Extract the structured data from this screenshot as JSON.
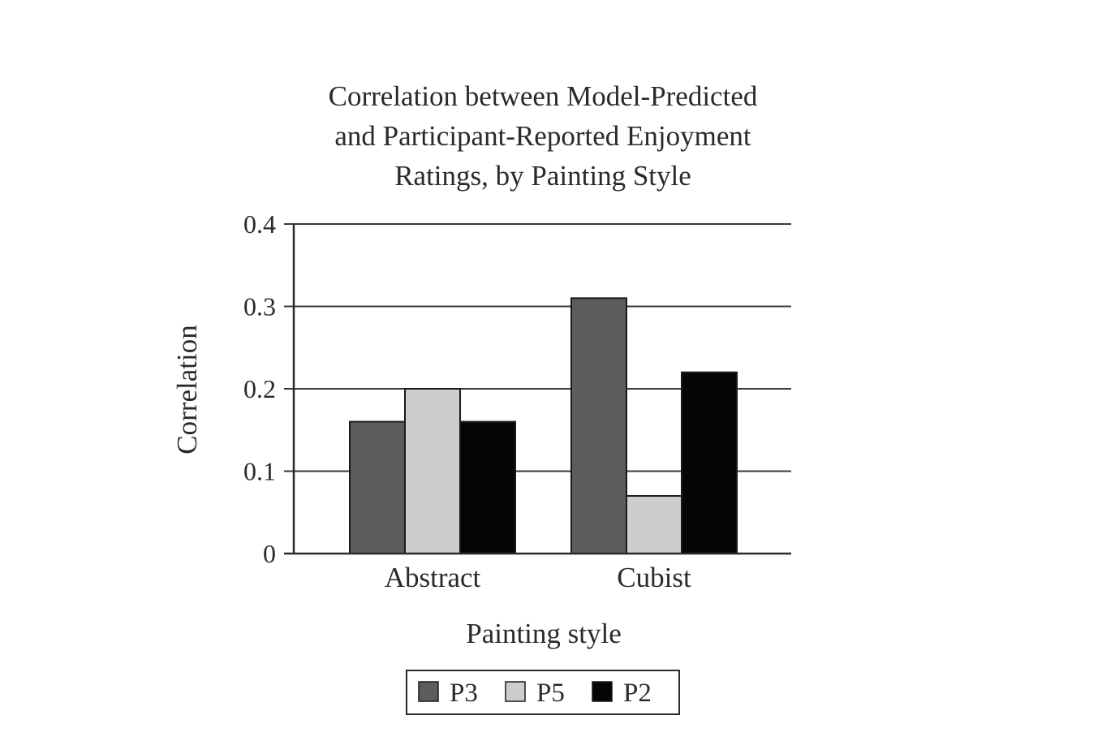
{
  "chart_data": {
    "type": "bar",
    "title_lines": [
      "Correlation between Model-Predicted",
      "and Participant-Reported Enjoyment",
      "Ratings, by Painting Style"
    ],
    "xlabel": "Painting style",
    "ylabel": "Correlation",
    "categories": [
      "Abstract",
      "Cubist"
    ],
    "series": [
      {
        "name": "P3",
        "values": [
          0.16,
          0.31
        ],
        "color": "#5c5c5e"
      },
      {
        "name": "P5",
        "values": [
          0.2,
          0.07
        ],
        "color": "#cdcdcf"
      },
      {
        "name": "P2",
        "values": [
          0.16,
          0.22
        ],
        "color": "#050505"
      }
    ],
    "ylim": [
      0,
      0.4
    ],
    "yticks": [
      0,
      0.1,
      0.2,
      0.3,
      0.4
    ],
    "ytick_labels": [
      "0",
      "0.1",
      "0.2",
      "0.3",
      "0.4"
    ],
    "grid": true,
    "legend": "bottom-center"
  }
}
